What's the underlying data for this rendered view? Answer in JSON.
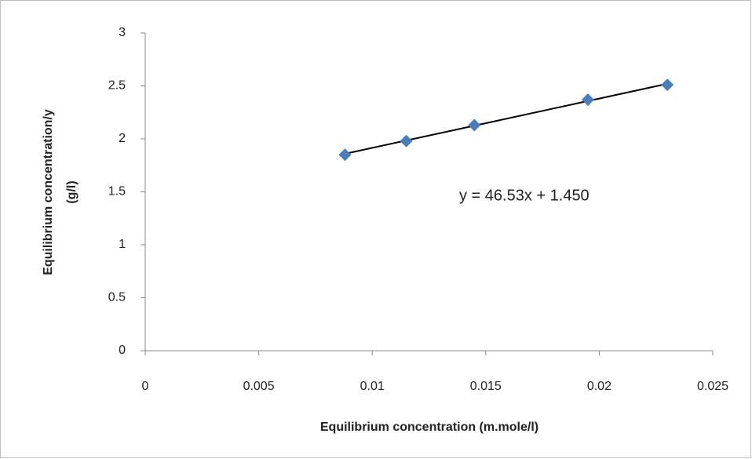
{
  "chart_data": {
    "type": "scatter",
    "x": [
      0.0088,
      0.0115,
      0.0145,
      0.0195,
      0.023
    ],
    "values": [
      1.85,
      1.98,
      2.13,
      2.37,
      2.51
    ],
    "color": "#4a7ebb",
    "xlabel": "Equilibrium concentration (m.mole/l)",
    "ylabel": [
      "Equilibrium concentration/y",
      "(g/l)"
    ],
    "xlim": [
      0,
      0.025
    ],
    "xticks": [
      0,
      0.005,
      0.01,
      0.015,
      0.02,
      0.025
    ],
    "ylim": [
      0,
      3
    ],
    "yticks": [
      0,
      0.5,
      1,
      1.5,
      2,
      2.5,
      3
    ],
    "grid": false,
    "trendline": {
      "slope": 46.53,
      "intercept": 1.45,
      "label": "y = 46.53x + 1.450",
      "color": "#000000"
    }
  }
}
